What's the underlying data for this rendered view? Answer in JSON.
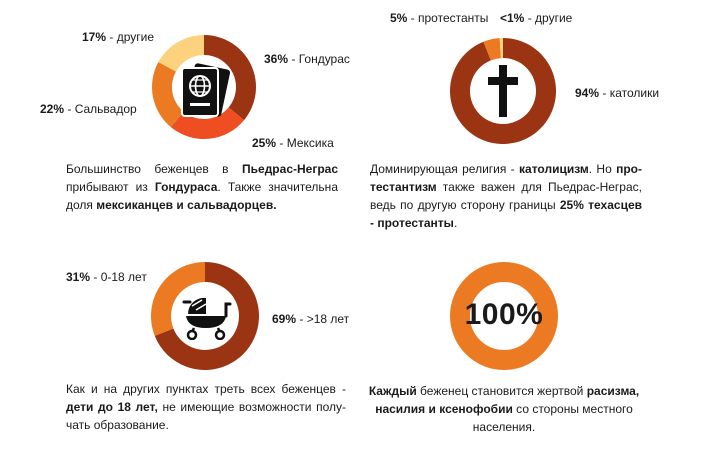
{
  "colors": {
    "dark": "#9a3412",
    "orange": "#ec7a22",
    "red": "#ee4e22",
    "yellow": "#fcd27e",
    "grey": "#dedede"
  },
  "chart_data": [
    {
      "type": "pie",
      "variant": "donut",
      "slices": [
        {
          "label": "Гондурас",
          "value": 36,
          "display": "36%"
        },
        {
          "label": "Мексика",
          "value": 25,
          "display": "25%"
        },
        {
          "label": "Сальвадор",
          "value": 22,
          "display": "22%"
        },
        {
          "label": "другие",
          "value": 17,
          "display": "17%"
        }
      ],
      "slice_colors": [
        "#9a3412",
        "#ee4e22",
        "#ec7a22",
        "#fcd27e"
      ],
      "icon": "passport-icon"
    },
    {
      "type": "pie",
      "variant": "donut",
      "slices": [
        {
          "label": "католики",
          "value": 94,
          "display": "94%"
        },
        {
          "label": "протестанты",
          "value": 5,
          "display": "5%"
        },
        {
          "label": "другие",
          "value": 1,
          "display": "<1%"
        }
      ],
      "slice_colors": [
        "#9a3412",
        "#ec7a22",
        "#fcd27e"
      ],
      "icon": "cross-icon"
    },
    {
      "type": "pie",
      "variant": "donut",
      "slices": [
        {
          "label": ">18 лет",
          "value": 69,
          "display": "69%"
        },
        {
          "label": "0-18 лет",
          "value": 31,
          "display": "31%"
        }
      ],
      "slice_colors": [
        "#9a3412",
        "#ec7a22"
      ],
      "icon": "stroller-icon"
    },
    {
      "type": "pie",
      "variant": "donut",
      "slices": [
        {
          "label": "",
          "value": 100,
          "display": "100%"
        }
      ],
      "slice_colors": [
        "#ec7a22"
      ],
      "center_text": "100%"
    }
  ],
  "labels": {
    "c1": {
      "hon_pct": "36%",
      "hon_txt": " - Гондурас",
      "mex_pct": "25%",
      "mex_txt": " - Мексика",
      "sal_pct": "22%",
      "sal_txt": " - Сальвадор",
      "oth_pct": "17%",
      "oth_txt": " - другие"
    },
    "c2": {
      "cat_pct": "94%",
      "cat_txt": " - католики",
      "pro_pct": "5%",
      "pro_txt": " - протестанты",
      "oth_pct": "<1%",
      "oth_txt": " - другие"
    },
    "c3": {
      "ad_pct": "69%",
      "ad_txt": " - >18 лет",
      "ch_pct": "31%",
      "ch_txt": " - 0-18 лет"
    }
  },
  "descriptions": {
    "d1": {
      "t1": "Большинство беженцев в ",
      "b1": "Пьедрас-Неграс",
      "t2": " прибывают из ",
      "b2": "Гондураса",
      "t3": ". Также значительна доля ",
      "b3": "мексиканцев и сальвадорцев."
    },
    "d2": {
      "t1": "Доминирующая религия - ",
      "b1": "католицизм",
      "t2": ". Но ",
      "b2": "про­тестантизм",
      "t3": " также важен для Пьедрас-Неграс, ведь по другую сторону границы ",
      "b3": "25% техасцев - протестанты",
      "t4": "."
    },
    "d3": {
      "t1": "Как и на других пунктах треть всех беженцев - ",
      "b1": "дети до 18 лет,",
      "t2": " не имеющие возможности полу­чать образование."
    },
    "d4": {
      "b1": "Каждый",
      "t1": " беженец становится жертвой ",
      "b2": "расизма, насилия и ксенофобии",
      "t2": " со стороны местного населения."
    }
  }
}
